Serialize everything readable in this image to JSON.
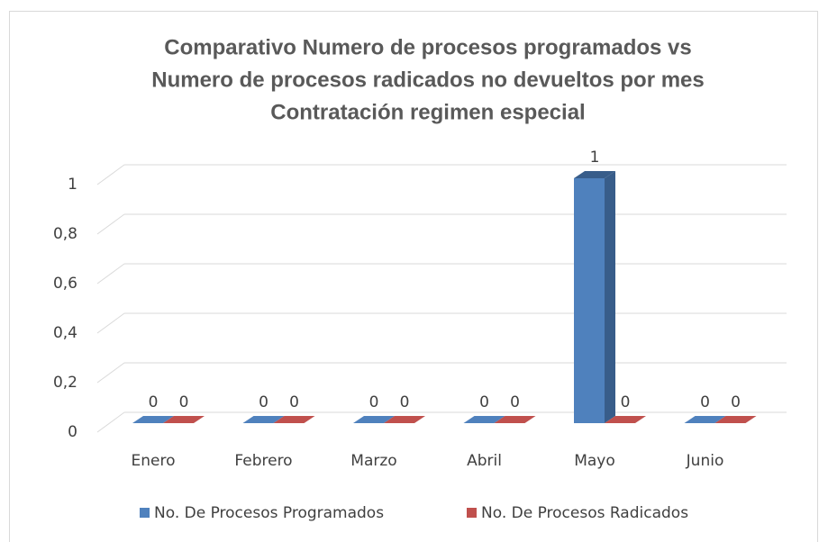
{
  "chart_data": {
    "type": "bar3d",
    "title": [
      "Comparativo Numero de procesos programados vs",
      "Numero de procesos radicados no devueltos por mes",
      "Contratación regimen especial"
    ],
    "categories": [
      "Enero",
      "Febrero",
      "Marzo",
      "Abril",
      "Mayo",
      "Junio"
    ],
    "series": [
      {
        "name": "No. De Procesos Programados",
        "color": "#4f81bd",
        "side": "#385d8a",
        "values": [
          0,
          0,
          0,
          0,
          1,
          0
        ]
      },
      {
        "name": "No. De Procesos Radicados",
        "color": "#c0504d",
        "side": "#8c3836",
        "values": [
          0,
          0,
          0,
          0,
          0,
          0
        ]
      }
    ],
    "ylim": [
      0,
      1
    ],
    "yticks": [
      0,
      {
        "value": 0.2,
        "label": "0,2"
      },
      {
        "value": 0.4,
        "label": "0,4"
      },
      {
        "value": 0.6,
        "label": "0,6"
      },
      {
        "value": 0.8,
        "label": "0,8"
      },
      1
    ],
    "grid": true,
    "legend": "bottom"
  }
}
